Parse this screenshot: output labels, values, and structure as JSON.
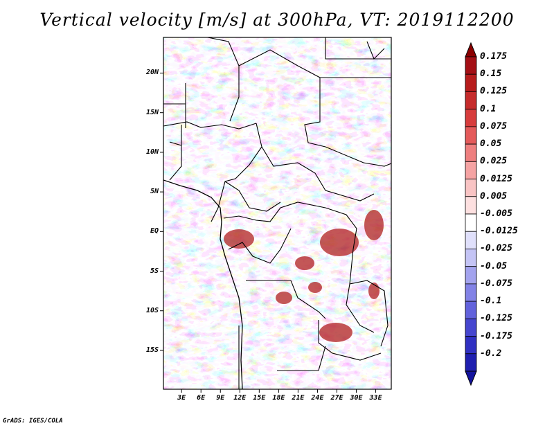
{
  "title": "Vertical velocity [m/s] at 300hPa, VT: 2019112200",
  "footer": "GrADS: IGES/COLA",
  "map": {
    "lat_ticks": [
      {
        "value": 20,
        "label": "20N"
      },
      {
        "value": 15,
        "label": "15N"
      },
      {
        "value": 10,
        "label": "10N"
      },
      {
        "value": 5,
        "label": "5N"
      },
      {
        "value": 0,
        "label": "EQ"
      },
      {
        "value": -5,
        "label": "5S"
      },
      {
        "value": -10,
        "label": "10S"
      },
      {
        "value": -15,
        "label": "15S"
      }
    ],
    "lon_ticks": [
      {
        "value": 3,
        "label": "3E"
      },
      {
        "value": 6,
        "label": "6E"
      },
      {
        "value": 9,
        "label": "9E"
      },
      {
        "value": 12,
        "label": "12E"
      },
      {
        "value": 15,
        "label": "15E"
      },
      {
        "value": 18,
        "label": "18E"
      },
      {
        "value": 21,
        "label": "21E"
      },
      {
        "value": 24,
        "label": "24E"
      },
      {
        "value": 27,
        "label": "27E"
      },
      {
        "value": 30,
        "label": "30E"
      },
      {
        "value": 33,
        "label": "33E"
      }
    ],
    "lon_range": [
      0.2,
      35.4
    ],
    "lat_range": [
      -19.9,
      24.5
    ]
  },
  "colorbar": {
    "levels": [
      {
        "label": "0.175",
        "color": "#a40f15"
      },
      {
        "label": "0.15",
        "color": "#b71c1c"
      },
      {
        "label": "0.125",
        "color": "#c62b2b"
      },
      {
        "label": "0.1",
        "color": "#d73c3c"
      },
      {
        "label": "0.075",
        "color": "#e45a5a"
      },
      {
        "label": "0.05",
        "color": "#ee7f7f"
      },
      {
        "label": "0.025",
        "color": "#f5a3a3"
      },
      {
        "label": "0.0125",
        "color": "#f9c4c4"
      },
      {
        "label": "0.005",
        "color": "#fde0e0"
      },
      {
        "label": "-0.005",
        "color": "#ffffff"
      },
      {
        "label": "-0.0125",
        "color": "#e0e0fb"
      },
      {
        "label": "-0.025",
        "color": "#c4c4f5"
      },
      {
        "label": "-0.05",
        "color": "#a3a3ee"
      },
      {
        "label": "-0.075",
        "color": "#8282e6"
      },
      {
        "label": "-0.1",
        "color": "#6262dc"
      },
      {
        "label": "-0.125",
        "color": "#4646cf"
      },
      {
        "label": "-0.175",
        "color": "#3030c2"
      },
      {
        "label": "-0.2",
        "color": "#1f1fb0"
      }
    ],
    "top_color": "#8b0000",
    "bottom_color": "#14149e"
  }
}
